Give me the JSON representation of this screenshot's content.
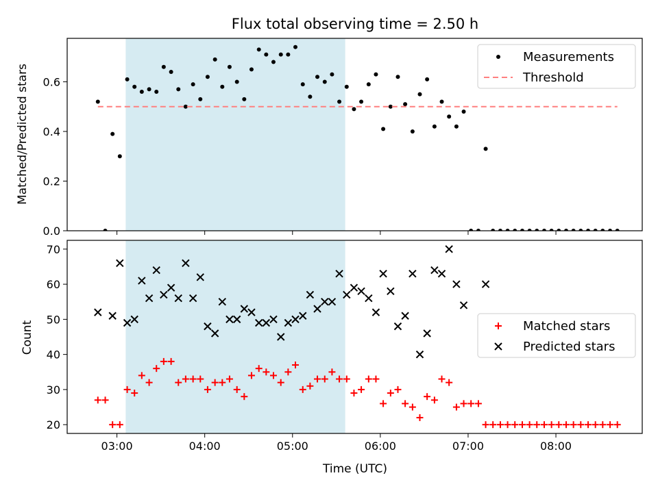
{
  "chart_data": [
    {
      "type": "scatter",
      "title": "Flux total observing time = 2.50 h",
      "xlabel": "",
      "ylabel": "Matched/Predicted stars",
      "xaxis": "time",
      "xlim_hours": [
        2.4333,
        8.9833
      ],
      "ylim": [
        0,
        0.775
      ],
      "yticks": [
        0.0,
        0.2,
        0.4,
        0.6
      ],
      "ytick_labels": [
        "0.0",
        "0.2",
        "0.4",
        "0.6"
      ],
      "highlight_span": {
        "start": 3.1,
        "end": 5.6,
        "color": "#add8e6"
      },
      "legend": {
        "position": "upper right",
        "entries": [
          "Measurements",
          "Threshold"
        ]
      },
      "series": [
        {
          "name": "Measurements",
          "color": "#000000",
          "marker": "dot",
          "x": [
            2.783,
            2.867,
            2.95,
            3.033,
            3.117,
            3.2,
            3.283,
            3.367,
            3.45,
            3.533,
            3.617,
            3.7,
            3.783,
            3.867,
            3.95,
            4.033,
            4.117,
            4.2,
            4.283,
            4.367,
            4.45,
            4.533,
            4.617,
            4.7,
            4.783,
            4.867,
            4.95,
            5.033,
            5.117,
            5.2,
            5.283,
            5.367,
            5.45,
            5.533,
            5.617,
            5.7,
            5.783,
            5.867,
            5.95,
            6.033,
            6.117,
            6.2,
            6.283,
            6.367,
            6.45,
            6.533,
            6.617,
            6.7,
            6.783,
            6.867,
            6.95,
            7.033,
            7.117,
            7.2,
            7.283,
            7.367,
            7.45,
            7.533,
            7.617,
            7.7,
            7.783,
            7.867,
            7.95,
            8.033,
            8.117,
            8.2,
            8.283,
            8.367,
            8.45,
            8.533,
            8.617,
            8.7
          ],
          "y": [
            0.52,
            0.0,
            0.39,
            0.3,
            0.61,
            0.58,
            0.56,
            0.57,
            0.56,
            0.66,
            0.64,
            0.57,
            0.5,
            0.59,
            0.53,
            0.62,
            0.69,
            0.58,
            0.66,
            0.6,
            0.53,
            0.65,
            0.73,
            0.71,
            0.68,
            0.71,
            0.71,
            0.74,
            0.59,
            0.54,
            0.62,
            0.6,
            0.63,
            0.52,
            0.58,
            0.49,
            0.52,
            0.59,
            0.63,
            0.41,
            0.5,
            0.62,
            0.51,
            0.4,
            0.55,
            0.61,
            0.42,
            0.52,
            0.46,
            0.42,
            0.48,
            0.0,
            0.0,
            0.33,
            0.0,
            0.0,
            0.0,
            0.0,
            0.0,
            0.0,
            0.0,
            0.0,
            0.0,
            0.0,
            0.0,
            0.0,
            0.0,
            0.0,
            0.0,
            0.0,
            0.0,
            0.0
          ]
        },
        {
          "name": "Threshold",
          "color": "#ff7f7f",
          "style": "dashed",
          "x": [
            2.783,
            8.7
          ],
          "y": [
            0.5,
            0.5
          ]
        }
      ]
    },
    {
      "type": "scatter",
      "title": "",
      "xlabel": "Time (UTC)",
      "ylabel": "Count",
      "xaxis": "time",
      "xlim_hours": [
        2.4333,
        8.9833
      ],
      "xticks_hours": [
        3,
        4,
        5,
        6,
        7,
        8
      ],
      "xtick_labels": [
        "03:00",
        "04:00",
        "05:00",
        "06:00",
        "07:00",
        "08:00"
      ],
      "ylim": [
        17.5,
        72.5
      ],
      "yticks": [
        20,
        30,
        40,
        50,
        60,
        70
      ],
      "ytick_labels": [
        "20",
        "30",
        "40",
        "50",
        "60",
        "70"
      ],
      "highlight_span": {
        "start": 3.1,
        "end": 5.6,
        "color": "#add8e6"
      },
      "legend": {
        "position": "center right",
        "entries": [
          "Matched stars",
          "Predicted stars"
        ]
      },
      "series": [
        {
          "name": "Matched stars",
          "color": "#ff0000",
          "marker": "plus",
          "x": [
            2.783,
            2.867,
            2.95,
            3.033,
            3.117,
            3.2,
            3.283,
            3.367,
            3.45,
            3.533,
            3.617,
            3.7,
            3.783,
            3.867,
            3.95,
            4.033,
            4.117,
            4.2,
            4.283,
            4.367,
            4.45,
            4.533,
            4.617,
            4.7,
            4.783,
            4.867,
            4.95,
            5.033,
            5.117,
            5.2,
            5.283,
            5.367,
            5.45,
            5.533,
            5.617,
            5.7,
            5.783,
            5.867,
            5.95,
            6.033,
            6.117,
            6.2,
            6.283,
            6.367,
            6.45,
            6.533,
            6.617,
            6.7,
            6.783,
            6.867,
            6.95,
            7.033,
            7.117,
            7.2,
            7.283,
            7.367,
            7.45,
            7.533,
            7.617,
            7.7,
            7.783,
            7.867,
            7.95,
            8.033,
            8.117,
            8.2,
            8.283,
            8.367,
            8.45,
            8.533,
            8.617,
            8.7
          ],
          "y": [
            27,
            27,
            20,
            20,
            30,
            29,
            34,
            32,
            36,
            38,
            38,
            32,
            33,
            33,
            33,
            30,
            32,
            32,
            33,
            30,
            28,
            34,
            36,
            35,
            34,
            32,
            35,
            37,
            30,
            31,
            33,
            33,
            35,
            33,
            33,
            29,
            30,
            33,
            33,
            26,
            29,
            30,
            26,
            25,
            22,
            28,
            27,
            33,
            32,
            25,
            26,
            26,
            26,
            20,
            20,
            20,
            20,
            20,
            20,
            20,
            20,
            20,
            20,
            20,
            20,
            20,
            20,
            20,
            20,
            20,
            20,
            20
          ]
        },
        {
          "name": "Predicted stars",
          "color": "#000000",
          "marker": "x",
          "x": [
            2.783,
            2.95,
            3.033,
            3.117,
            3.2,
            3.283,
            3.367,
            3.45,
            3.533,
            3.617,
            3.7,
            3.783,
            3.867,
            3.95,
            4.033,
            4.117,
            4.2,
            4.283,
            4.367,
            4.45,
            4.533,
            4.617,
            4.7,
            4.783,
            4.867,
            4.95,
            5.033,
            5.117,
            5.2,
            5.283,
            5.367,
            5.45,
            5.533,
            5.617,
            5.7,
            5.783,
            5.867,
            5.95,
            6.033,
            6.117,
            6.2,
            6.283,
            6.367,
            6.45,
            6.533,
            6.617,
            6.7,
            6.783,
            6.867,
            6.95,
            7.2
          ],
          "y": [
            52,
            51,
            66,
            49,
            50,
            61,
            56,
            64,
            57,
            59,
            56,
            66,
            56,
            62,
            48,
            46,
            55,
            50,
            50,
            53,
            52,
            49,
            49,
            50,
            45,
            49,
            50,
            51,
            57,
            53,
            55,
            55,
            63,
            57,
            59,
            58,
            56,
            52,
            63,
            58,
            48,
            51,
            63,
            40,
            46,
            64,
            63,
            70,
            60,
            54,
            60
          ]
        }
      ]
    }
  ]
}
